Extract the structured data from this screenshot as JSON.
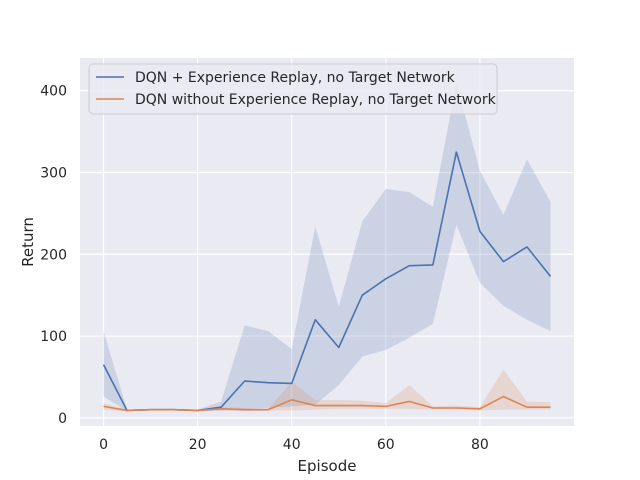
{
  "chart_data": {
    "type": "line",
    "title": "",
    "xlabel": "Episode",
    "ylabel": "Return",
    "xlim": [
      -5,
      100
    ],
    "ylim": [
      -10,
      440
    ],
    "x_ticks": [
      0,
      20,
      40,
      60,
      80
    ],
    "y_ticks": [
      0,
      100,
      200,
      300,
      400
    ],
    "grid": true,
    "legend_position": "top-left",
    "x": [
      0,
      5,
      10,
      15,
      20,
      25,
      30,
      35,
      40,
      45,
      50,
      55,
      60,
      65,
      70,
      75,
      80,
      85,
      90,
      95
    ],
    "series": [
      {
        "name": "DQN + Experience Replay, no Target Network",
        "color": "#4c72b0",
        "values": [
          65,
          9,
          10,
          10,
          9,
          13,
          45,
          43,
          42,
          120,
          86,
          150,
          170,
          186,
          187,
          325,
          228,
          191,
          209,
          173
        ],
        "lower": [
          26,
          8,
          9,
          9,
          8,
          9,
          11,
          12,
          14,
          16,
          40,
          75,
          83,
          98,
          115,
          236,
          165,
          137,
          120,
          106
        ],
        "upper": [
          106,
          10,
          11,
          11,
          10,
          20,
          113,
          106,
          84,
          234,
          136,
          240,
          280,
          276,
          258,
          410,
          302,
          248,
          316,
          264
        ]
      },
      {
        "name": "DQN without Experience Replay, no Target Network",
        "color": "#dd8452",
        "values": [
          14,
          9,
          10,
          10,
          9,
          11,
          10,
          10,
          22,
          15,
          15,
          15,
          14,
          20,
          12,
          12,
          11,
          26,
          13,
          13
        ],
        "lower": [
          10,
          8,
          9,
          9,
          8,
          9,
          8,
          9,
          9,
          10,
          11,
          11,
          11,
          11,
          10,
          10,
          9,
          10,
          10,
          10
        ],
        "upper": [
          18,
          10,
          11,
          11,
          10,
          13,
          12,
          11,
          44,
          22,
          22,
          21,
          18,
          40,
          14,
          15,
          13,
          59,
          20,
          19
        ]
      }
    ]
  }
}
